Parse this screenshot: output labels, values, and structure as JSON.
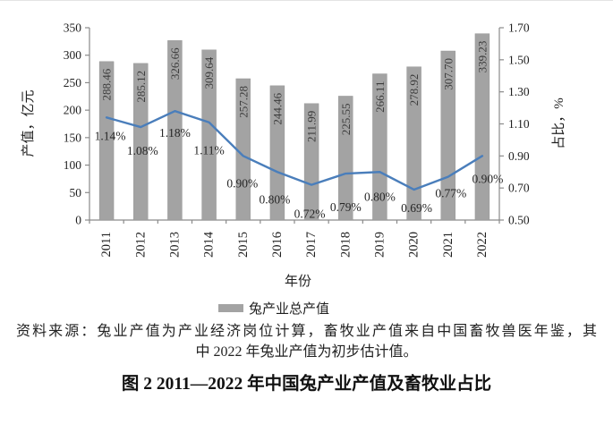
{
  "figure": {
    "source_note_line1": "资料来源：兔业产值为产业经济岗位计算，畜牧业产值来自中国畜牧兽医年鉴，其",
    "source_note_line2": "中 2022 年兔业产值为初步估计值。",
    "caption": "图 2 2011—2022 年中国兔产业产值及畜牧业占比"
  },
  "chart_data": {
    "type": "bar",
    "combo": "bar+line",
    "title": "图 2 2011—2022 年中国兔产业产值及畜牧业占比",
    "categories": [
      "2011",
      "2012",
      "2013",
      "2014",
      "2015",
      "2016",
      "2017",
      "2018",
      "2019",
      "2020",
      "2021",
      "2022"
    ],
    "series": [
      {
        "name": "兔产业总产值",
        "type": "bar",
        "axis": "left",
        "color": "#a3a3a3",
        "values": [
          288.46,
          285.12,
          326.66,
          309.64,
          257.28,
          244.46,
          211.99,
          225.55,
          266.11,
          278.92,
          307.7,
          339.23
        ],
        "labels": [
          "288.46",
          "285.12",
          "326.66",
          "309.64",
          "257.28",
          "244.46",
          "211.99",
          "225.55",
          "266.11",
          "278.92",
          "307.70",
          "339.23"
        ]
      },
      {
        "name": "占比",
        "type": "line",
        "axis": "right",
        "color": "#4a7ebb",
        "values": [
          1.14,
          1.08,
          1.18,
          1.11,
          0.9,
          0.8,
          0.72,
          0.79,
          0.8,
          0.69,
          0.77,
          0.9
        ],
        "labels": [
          "1.14%",
          "1.08%",
          "1.18%",
          "1.11%",
          "0.90%",
          "0.80%",
          "0.72%",
          "0.79%",
          "0.80%",
          "0.69%",
          "0.77%",
          "0.90%"
        ]
      }
    ],
    "left_axis": {
      "title": "产值，亿元",
      "min": 0,
      "max": 350,
      "step": 50,
      "tick_labels": [
        "0",
        "50",
        "100",
        "150",
        "200",
        "250",
        "300",
        "350"
      ]
    },
    "right_axis": {
      "title": "占比，%",
      "min": 0.5,
      "max": 1.7,
      "step": 0.2,
      "tick_labels": [
        "0.50",
        "0.70",
        "0.90",
        "1.10",
        "1.30",
        "1.50",
        "1.70"
      ]
    },
    "xlabel": "年份",
    "grid": false,
    "legend_position": "bottom",
    "legend": [
      {
        "label": "兔产业总产值",
        "swatch_color": "#a3a3a3"
      }
    ]
  }
}
